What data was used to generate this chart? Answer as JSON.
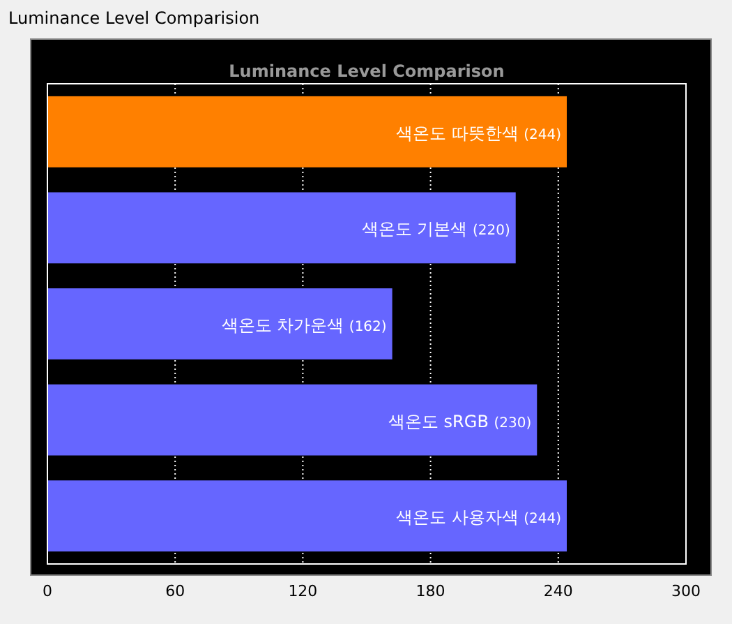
{
  "chart_data": {
    "type": "bar",
    "orientation": "horizontal",
    "title": "Luminance Level Comparision",
    "subtitle": "Luminance Level Comparison",
    "categories": [
      "색온도 따뜻한색",
      "색온도 기본색",
      "색온도 차가운색",
      "색온도 sRGB",
      "색온도 사용자색"
    ],
    "values": [
      244,
      220,
      162,
      230,
      244
    ],
    "colors": [
      "#ff8000",
      "#6666ff",
      "#6666ff",
      "#6666ff",
      "#6666ff"
    ],
    "value_labels": [
      "(244)",
      "(220)",
      "(162)",
      "(230)",
      "(244)"
    ],
    "xlim": [
      0,
      300
    ],
    "xticks": [
      0,
      60,
      120,
      180,
      240,
      300
    ],
    "grid": "x"
  }
}
